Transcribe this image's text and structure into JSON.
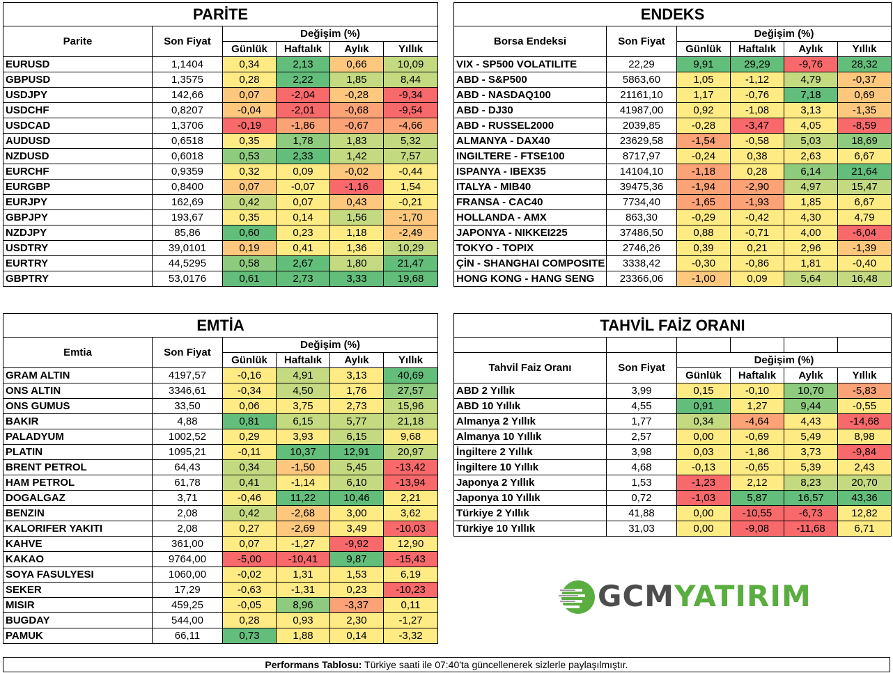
{
  "parite": {
    "title": "PARİTE",
    "col_name": "Parite",
    "col_price": "Son Fiyat",
    "col_change": "Değişim (%)",
    "periods": [
      "Günlük",
      "Haftalık",
      "Aylık",
      "Yıllık"
    ],
    "rows": [
      {
        "name": "EURUSD",
        "price": "1,1404",
        "vals": [
          "0,34",
          "2,13",
          "0,66",
          "10,09"
        ],
        "colors": [
          "y",
          "g3",
          "o1",
          "g1"
        ]
      },
      {
        "name": "GBPUSD",
        "price": "1,3575",
        "vals": [
          "0,28",
          "2,22",
          "1,85",
          "8,44"
        ],
        "colors": [
          "y",
          "g3",
          "g1",
          "g1"
        ]
      },
      {
        "name": "USDJPY",
        "price": "142,66",
        "vals": [
          "0,07",
          "-2,04",
          "-0,28",
          "-9,34"
        ],
        "colors": [
          "o1",
          "r",
          "o1",
          "r"
        ]
      },
      {
        "name": "USDCHF",
        "price": "0,8207",
        "vals": [
          "-0,04",
          "-2,01",
          "-0,68",
          "-9,54"
        ],
        "colors": [
          "o1",
          "r",
          "o2",
          "r"
        ]
      },
      {
        "name": "USDCAD",
        "price": "1,3706",
        "vals": [
          "-0,19",
          "-1,86",
          "-0,67",
          "-4,66"
        ],
        "colors": [
          "r",
          "o2",
          "o2",
          "o2"
        ]
      },
      {
        "name": "AUDUSD",
        "price": "0,6518",
        "vals": [
          "0,35",
          "1,78",
          "1,83",
          "5,32"
        ],
        "colors": [
          "y",
          "g2",
          "g1",
          "g1"
        ]
      },
      {
        "name": "NZDUSD",
        "price": "0,6018",
        "vals": [
          "0,53",
          "2,33",
          "1,42",
          "7,57"
        ],
        "colors": [
          "g2",
          "g3",
          "g1",
          "g1"
        ]
      },
      {
        "name": "EURCHF",
        "price": "0,9359",
        "vals": [
          "0,32",
          "0,09",
          "-0,02",
          "-0,44"
        ],
        "colors": [
          "y",
          "y",
          "o1",
          "y"
        ]
      },
      {
        "name": "EURGBP",
        "price": "0,8400",
        "vals": [
          "0,07",
          "-0,07",
          "-1,16",
          "1,54"
        ],
        "colors": [
          "o1",
          "y",
          "r",
          "y"
        ]
      },
      {
        "name": "EURJPY",
        "price": "162,69",
        "vals": [
          "0,42",
          "0,07",
          "0,43",
          "-0,21"
        ],
        "colors": [
          "g1",
          "y",
          "o1",
          "y"
        ]
      },
      {
        "name": "GBPJPY",
        "price": "193,67",
        "vals": [
          "0,35",
          "0,14",
          "1,56",
          "-1,70"
        ],
        "colors": [
          "y",
          "y",
          "g1",
          "o1"
        ]
      },
      {
        "name": "NZDJPY",
        "price": "85,86",
        "vals": [
          "0,60",
          "0,23",
          "1,18",
          "-2,49"
        ],
        "colors": [
          "g3",
          "y",
          "y",
          "o1"
        ]
      },
      {
        "name": "USDTRY",
        "price": "39,0101",
        "vals": [
          "0,19",
          "0,41",
          "1,36",
          "10,29"
        ],
        "colors": [
          "o1",
          "y",
          "y",
          "g1"
        ]
      },
      {
        "name": "EURTRY",
        "price": "44,5295",
        "vals": [
          "0,58",
          "2,67",
          "1,80",
          "21,47"
        ],
        "colors": [
          "g2",
          "g3",
          "g1",
          "g3"
        ]
      },
      {
        "name": "GBPTRY",
        "price": "53,0176",
        "vals": [
          "0,61",
          "2,73",
          "3,33",
          "19,68"
        ],
        "colors": [
          "g3",
          "g3",
          "g3",
          "g3"
        ]
      }
    ]
  },
  "endeks": {
    "title": "ENDEKS",
    "col_name": "Borsa Endeksi",
    "col_price": "Son Fiyat",
    "col_change": "Değişim (%)",
    "periods": [
      "Günlük",
      "Haftalık",
      "Aylık",
      "Yıllık"
    ],
    "rows": [
      {
        "name": "VIX  - SP500 VOLATILITE",
        "price": "22,29",
        "vals": [
          "9,91",
          "29,29",
          "-9,76",
          "28,32"
        ],
        "colors": [
          "g3",
          "g3",
          "r",
          "g3"
        ]
      },
      {
        "name": "ABD - S&P500",
        "price": "5863,60",
        "vals": [
          "1,05",
          "-1,12",
          "4,79",
          "-0,37"
        ],
        "colors": [
          "y",
          "y",
          "g1",
          "o1"
        ]
      },
      {
        "name": "ABD - NASDAQ100",
        "price": "21161,10",
        "vals": [
          "1,17",
          "-0,76",
          "7,18",
          "0,69"
        ],
        "colors": [
          "y",
          "y",
          "g3",
          "o1"
        ]
      },
      {
        "name": "ABD - DJ30",
        "price": "41987,00",
        "vals": [
          "0,92",
          "-1,08",
          "3,13",
          "-1,35"
        ],
        "colors": [
          "y",
          "y",
          "y",
          "o1"
        ]
      },
      {
        "name": "ABD - RUSSEL2000",
        "price": "2039,85",
        "vals": [
          "-0,28",
          "-3,47",
          "4,05",
          "-8,59"
        ],
        "colors": [
          "y",
          "r",
          "y",
          "r"
        ]
      },
      {
        "name": "ALMANYA - DAX40",
        "price": "23629,58",
        "vals": [
          "-1,54",
          "-0,58",
          "5,03",
          "18,69"
        ],
        "colors": [
          "o2",
          "y",
          "g1",
          "g2"
        ]
      },
      {
        "name": "INGILTERE - FTSE100",
        "price": "8717,97",
        "vals": [
          "-0,24",
          "0,38",
          "2,63",
          "6,67"
        ],
        "colors": [
          "y",
          "y",
          "y",
          "y"
        ]
      },
      {
        "name": "ISPANYA - IBEX35",
        "price": "14104,10",
        "vals": [
          "-1,18",
          "0,28",
          "6,14",
          "21,64"
        ],
        "colors": [
          "o2",
          "y",
          "g2",
          "g3"
        ]
      },
      {
        "name": "ITALYA - MIB40",
        "price": "39475,36",
        "vals": [
          "-1,94",
          "-2,90",
          "4,97",
          "15,47"
        ],
        "colors": [
          "o2",
          "o2",
          "g1",
          "g1"
        ]
      },
      {
        "name": "FRANSA - CAC40",
        "price": "7734,40",
        "vals": [
          "-1,65",
          "-1,93",
          "1,85",
          "6,67"
        ],
        "colors": [
          "o2",
          "o2",
          "y",
          "y"
        ]
      },
      {
        "name": "HOLLANDA - AMX",
        "price": "863,30",
        "vals": [
          "-0,29",
          "-0,42",
          "4,30",
          "4,79"
        ],
        "colors": [
          "y",
          "y",
          "y",
          "y"
        ]
      },
      {
        "name": "JAPONYA - NIKKEI225",
        "price": "37486,50",
        "vals": [
          "0,88",
          "-0,71",
          "4,00",
          "-6,04"
        ],
        "colors": [
          "y",
          "y",
          "y",
          "r"
        ]
      },
      {
        "name": "TOKYO - TOPIX",
        "price": "2746,26",
        "vals": [
          "0,39",
          "0,21",
          "2,96",
          "-1,39"
        ],
        "colors": [
          "y",
          "y",
          "y",
          "o1"
        ]
      },
      {
        "name": "ÇİN - SHANGHAI COMPOSITE",
        "price": "3338,42",
        "vals": [
          "-0,30",
          "-0,86",
          "1,81",
          "-0,40"
        ],
        "colors": [
          "y",
          "y",
          "y",
          "y"
        ]
      },
      {
        "name": "HONG KONG - HANG SENG",
        "price": "23366,06",
        "vals": [
          "-1,00",
          "0,09",
          "5,64",
          "16,48"
        ],
        "colors": [
          "o1",
          "y",
          "g1",
          "g1"
        ]
      }
    ]
  },
  "emtia": {
    "title": "EMTİA",
    "col_name": "Emtia",
    "col_price": "Son Fiyat",
    "col_change": "Değişim (%)",
    "periods": [
      "Günlük",
      "Haftalık",
      "Aylık",
      "Yıllık"
    ],
    "rows": [
      {
        "name": "GRAM ALTIN",
        "price": "4197,57",
        "vals": [
          "-0,16",
          "4,91",
          "3,13",
          "40,69"
        ],
        "colors": [
          "y",
          "g1",
          "y",
          "g3"
        ]
      },
      {
        "name": "ONS ALTIN",
        "price": "3346,61",
        "vals": [
          "-0,34",
          "4,50",
          "1,76",
          "27,57"
        ],
        "colors": [
          "y",
          "g1",
          "y",
          "g2"
        ]
      },
      {
        "name": "ONS GUMUS",
        "price": "33,50",
        "vals": [
          "0,06",
          "3,75",
          "2,73",
          "15,96"
        ],
        "colors": [
          "y",
          "y",
          "y",
          "g1"
        ]
      },
      {
        "name": "BAKIR",
        "price": "4,88",
        "vals": [
          "0,81",
          "6,15",
          "5,77",
          "21,18"
        ],
        "colors": [
          "g3",
          "g1",
          "g1",
          "g1"
        ]
      },
      {
        "name": "PALADYUM",
        "price": "1002,52",
        "vals": [
          "0,29",
          "3,93",
          "6,15",
          "9,68"
        ],
        "colors": [
          "y",
          "y",
          "g1",
          "y"
        ]
      },
      {
        "name": "PLATIN",
        "price": "1095,21",
        "vals": [
          "-0,11",
          "10,37",
          "12,91",
          "20,97"
        ],
        "colors": [
          "y",
          "g3",
          "g3",
          "g1"
        ]
      },
      {
        "name": "BRENT PETROL",
        "price": "64,43",
        "vals": [
          "0,34",
          "-1,50",
          "5,45",
          "-13,42"
        ],
        "colors": [
          "g1",
          "o1",
          "g1",
          "r"
        ]
      },
      {
        "name": "HAM PETROL",
        "price": "61,78",
        "vals": [
          "0,41",
          "-1,14",
          "6,10",
          "-13,94"
        ],
        "colors": [
          "g1",
          "y",
          "g1",
          "r"
        ]
      },
      {
        "name": "DOGALGAZ",
        "price": "3,71",
        "vals": [
          "-0,46",
          "11,22",
          "10,46",
          "2,21"
        ],
        "colors": [
          "y",
          "g3",
          "g3",
          "y"
        ]
      },
      {
        "name": "BENZIN",
        "price": "2,08",
        "vals": [
          "0,42",
          "-2,68",
          "3,00",
          "3,62"
        ],
        "colors": [
          "g1",
          "o1",
          "y",
          "y"
        ]
      },
      {
        "name": "KALORIFER YAKITI",
        "price": "2,08",
        "vals": [
          "0,27",
          "-2,69",
          "3,49",
          "-10,03"
        ],
        "colors": [
          "y",
          "o1",
          "y",
          "r"
        ]
      },
      {
        "name": "KAHVE",
        "price": "361,00",
        "vals": [
          "0,07",
          "-1,27",
          "-9,92",
          "12,90"
        ],
        "colors": [
          "y",
          "y",
          "r",
          "y"
        ]
      },
      {
        "name": "KAKAO",
        "price": "9764,00",
        "vals": [
          "-5,00",
          "-10,41",
          "9,87",
          "-15,43"
        ],
        "colors": [
          "r",
          "r",
          "g3",
          "r"
        ]
      },
      {
        "name": "SOYA FASULYESI",
        "price": "1060,00",
        "vals": [
          "-0,02",
          "1,31",
          "1,53",
          "6,19"
        ],
        "colors": [
          "y",
          "y",
          "y",
          "y"
        ]
      },
      {
        "name": "SEKER",
        "price": "17,29",
        "vals": [
          "-0,63",
          "-1,31",
          "0,23",
          "-10,23"
        ],
        "colors": [
          "y",
          "y",
          "y",
          "r"
        ]
      },
      {
        "name": "MISIR",
        "price": "459,25",
        "vals": [
          "-0,05",
          "8,96",
          "-3,37",
          "0,11"
        ],
        "colors": [
          "y",
          "g2",
          "o2",
          "y"
        ]
      },
      {
        "name": "BUGDAY",
        "price": "544,00",
        "vals": [
          "0,28",
          "0,93",
          "2,30",
          "-1,27"
        ],
        "colors": [
          "y",
          "y",
          "y",
          "y"
        ]
      },
      {
        "name": "PAMUK",
        "price": "66,11",
        "vals": [
          "0,73",
          "1,88",
          "0,14",
          "-3,32"
        ],
        "colors": [
          "g3",
          "y",
          "y",
          "y"
        ]
      }
    ]
  },
  "tahvil": {
    "title": "TAHVİL FAİZ ORANI",
    "col_name": "Tahvil Faiz Oranı",
    "col_price": "Son Fiyat",
    "col_change": "Değişim (%)",
    "periods": [
      "Günlük",
      "Haftalık",
      "Aylık",
      "Yıllık"
    ],
    "rows": [
      {
        "name": "ABD 2 Yıllık",
        "price": "3,99",
        "vals": [
          "0,15",
          "-0,10",
          "10,70",
          "-5,83"
        ],
        "colors": [
          "y",
          "y",
          "g2",
          "o2"
        ]
      },
      {
        "name": "ABD 10 Yıllık",
        "price": "4,55",
        "vals": [
          "0,91",
          "1,27",
          "9,44",
          "-0,55"
        ],
        "colors": [
          "g3",
          "y",
          "g2",
          "y"
        ]
      },
      {
        "name": "Almanya 2 Yıllık",
        "price": "1,77",
        "vals": [
          "0,34",
          "-4,64",
          "4,43",
          "-14,68"
        ],
        "colors": [
          "g1",
          "o2",
          "y",
          "r"
        ]
      },
      {
        "name": "Almanya 10 Yıllık",
        "price": "2,57",
        "vals": [
          "0,00",
          "-0,69",
          "5,49",
          "8,98"
        ],
        "colors": [
          "y",
          "y",
          "y",
          "y"
        ]
      },
      {
        "name": "İngiltere 2 Yıllık",
        "price": "3,98",
        "vals": [
          "0,03",
          "-1,86",
          "3,73",
          "-9,84"
        ],
        "colors": [
          "y",
          "y",
          "y",
          "r"
        ]
      },
      {
        "name": "İngiltere 10 Yıllık",
        "price": "4,68",
        "vals": [
          "-0,13",
          "-0,65",
          "5,39",
          "2,43"
        ],
        "colors": [
          "y",
          "y",
          "y",
          "y"
        ]
      },
      {
        "name": "Japonya 2 Yıllık",
        "price": "1,53",
        "vals": [
          "-1,23",
          "2,12",
          "8,23",
          "20,70"
        ],
        "colors": [
          "r",
          "y",
          "g1",
          "g1"
        ]
      },
      {
        "name": "Japonya 10 Yıllık",
        "price": "0,72",
        "vals": [
          "-1,03",
          "5,87",
          "16,57",
          "43,36"
        ],
        "colors": [
          "r",
          "g3",
          "g3",
          "g3"
        ]
      },
      {
        "name": "Türkiye 2 Yıllık",
        "price": "41,88",
        "vals": [
          "0,00",
          "-10,55",
          "-6,73",
          "12,82"
        ],
        "colors": [
          "y",
          "r",
          "r",
          "y"
        ]
      },
      {
        "name": "Türkiye 10 Yıllık",
        "price": "31,03",
        "vals": [
          "0,00",
          "-9,08",
          "-11,68",
          "6,71"
        ],
        "colors": [
          "y",
          "r",
          "r",
          "y"
        ]
      }
    ]
  },
  "logo": {
    "part1": "GCM",
    "part2": "YATIRIM"
  },
  "footer": {
    "label": "Performans Tablosu:",
    "text": " Türkiye saati ile 07:40'ta güncellenerek sizlerle paylaşılmıştır."
  }
}
